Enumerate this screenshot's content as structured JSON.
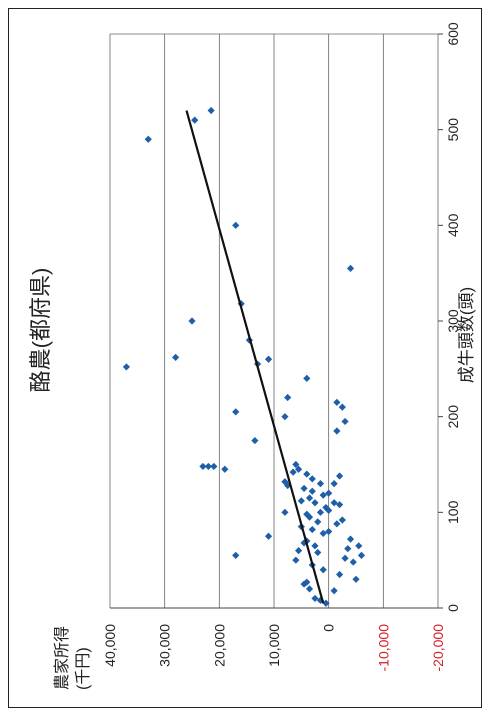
{
  "chart_data": {
    "type": "scatter",
    "title": "酪農(都府県)",
    "xlabel": "成牛頭数(頭)",
    "ylabel": "農家所得\n(千円)",
    "xlim": [
      0,
      600
    ],
    "ylim": [
      -20000,
      40000
    ],
    "x_ticks": [
      "0",
      "100",
      "200",
      "300",
      "400",
      "500",
      "600"
    ],
    "y_ticks": [
      "40,000",
      "30,000",
      "20,000",
      "10,000",
      "0",
      "-10,000",
      "-20,000"
    ],
    "grid": "horizontal",
    "marker_color": "#1f5fa8",
    "trend_color": "#111111",
    "negative_tick_color": "#d0202a",
    "trendline": {
      "x": [
        5,
        520
      ],
      "y": [
        1000,
        26000
      ]
    },
    "points": [
      {
        "x": 5,
        "y": 500
      },
      {
        "x": 8,
        "y": 1500
      },
      {
        "x": 10,
        "y": 2500
      },
      {
        "x": 18,
        "y": -1000
      },
      {
        "x": 20,
        "y": 3500
      },
      {
        "x": 25,
        "y": 4500
      },
      {
        "x": 27,
        "y": 4000
      },
      {
        "x": 30,
        "y": -5000
      },
      {
        "x": 35,
        "y": -2000
      },
      {
        "x": 40,
        "y": 1000
      },
      {
        "x": 45,
        "y": 3000
      },
      {
        "x": 48,
        "y": -4500
      },
      {
        "x": 50,
        "y": 6000
      },
      {
        "x": 52,
        "y": -3000
      },
      {
        "x": 55,
        "y": 17000
      },
      {
        "x": 55,
        "y": -6000
      },
      {
        "x": 58,
        "y": 2000
      },
      {
        "x": 60,
        "y": 5500
      },
      {
        "x": 62,
        "y": -3500
      },
      {
        "x": 65,
        "y": 2500
      },
      {
        "x": 65,
        "y": -5500
      },
      {
        "x": 68,
        "y": 4500
      },
      {
        "x": 70,
        "y": 4000
      },
      {
        "x": 72,
        "y": -4000
      },
      {
        "x": 75,
        "y": 11000
      },
      {
        "x": 78,
        "y": 1000
      },
      {
        "x": 80,
        "y": 0
      },
      {
        "x": 82,
        "y": 3000
      },
      {
        "x": 85,
        "y": 5000
      },
      {
        "x": 88,
        "y": -1500
      },
      {
        "x": 90,
        "y": 2000
      },
      {
        "x": 92,
        "y": -2500
      },
      {
        "x": 95,
        "y": 3500
      },
      {
        "x": 98,
        "y": 4000
      },
      {
        "x": 100,
        "y": 8000
      },
      {
        "x": 100,
        "y": 1500
      },
      {
        "x": 102,
        "y": 0
      },
      {
        "x": 105,
        "y": 500
      },
      {
        "x": 108,
        "y": -2000
      },
      {
        "x": 110,
        "y": 2500
      },
      {
        "x": 110,
        "y": -1000
      },
      {
        "x": 112,
        "y": 5000
      },
      {
        "x": 115,
        "y": 3500
      },
      {
        "x": 118,
        "y": 1000
      },
      {
        "x": 120,
        "y": 0
      },
      {
        "x": 122,
        "y": 3000
      },
      {
        "x": 125,
        "y": 4500
      },
      {
        "x": 128,
        "y": 7500
      },
      {
        "x": 130,
        "y": 1500
      },
      {
        "x": 130,
        "y": -1000
      },
      {
        "x": 132,
        "y": 8000
      },
      {
        "x": 135,
        "y": 3000
      },
      {
        "x": 138,
        "y": -2000
      },
      {
        "x": 140,
        "y": 4000
      },
      {
        "x": 142,
        "y": 6500
      },
      {
        "x": 145,
        "y": 5500
      },
      {
        "x": 145,
        "y": 19000
      },
      {
        "x": 148,
        "y": 21000
      },
      {
        "x": 148,
        "y": 22000
      },
      {
        "x": 148,
        "y": 23000
      },
      {
        "x": 150,
        "y": 6000
      },
      {
        "x": 175,
        "y": 13500
      },
      {
        "x": 185,
        "y": -1500
      },
      {
        "x": 195,
        "y": -3000
      },
      {
        "x": 200,
        "y": 8000
      },
      {
        "x": 205,
        "y": 17000
      },
      {
        "x": 210,
        "y": -2500
      },
      {
        "x": 215,
        "y": -1500
      },
      {
        "x": 220,
        "y": 7500
      },
      {
        "x": 240,
        "y": 4000
      },
      {
        "x": 252,
        "y": 37000
      },
      {
        "x": 255,
        "y": 13000
      },
      {
        "x": 260,
        "y": 11000
      },
      {
        "x": 262,
        "y": 28000
      },
      {
        "x": 280,
        "y": 14500
      },
      {
        "x": 300,
        "y": 25000
      },
      {
        "x": 318,
        "y": 16000
      },
      {
        "x": 355,
        "y": -4000
      },
      {
        "x": 400,
        "y": 17000
      },
      {
        "x": 490,
        "y": 33000
      },
      {
        "x": 510,
        "y": 24500
      },
      {
        "x": 520,
        "y": 21500
      }
    ]
  }
}
